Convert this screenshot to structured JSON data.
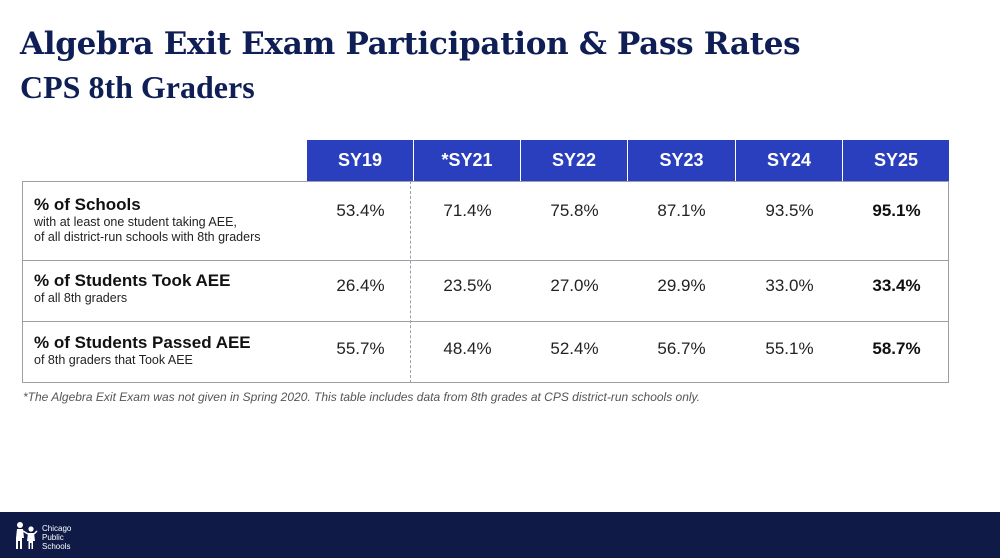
{
  "header": {
    "title": "Algebra Exit Exam Participation & Pass Rates",
    "subtitle": "CPS 8th Graders"
  },
  "table": {
    "columns": [
      "SY19",
      "*SY21",
      "SY22",
      "SY23",
      "SY24",
      "SY25"
    ],
    "rows": [
      {
        "label": "% of Schools",
        "sublabel_lines": [
          "with at least one student taking AEE,",
          "of all district-run schools with 8th graders"
        ],
        "values": [
          "53.4%",
          "71.4%",
          "75.8%",
          "87.1%",
          "93.5%",
          "95.1%"
        ]
      },
      {
        "label": "% of Students Took AEE",
        "sublabel_lines": [
          "of all 8th graders"
        ],
        "values": [
          "26.4%",
          "23.5%",
          "27.0%",
          "29.9%",
          "33.0%",
          "33.4%"
        ]
      },
      {
        "label": "% of Students Passed AEE",
        "sublabel_lines": [
          "of 8th graders that Took AEE"
        ],
        "values": [
          "55.7%",
          "48.4%",
          "52.4%",
          "56.7%",
          "55.1%",
          "58.7%"
        ]
      }
    ]
  },
  "footnote": "*The Algebra Exit Exam was not given in Spring 2020. This table includes data from 8th grades at CPS district-run schools only.",
  "footer": {
    "logo_lines": [
      "Chicago",
      "Public",
      "Schools"
    ],
    "icon": "cps-children-silhouette-icon"
  },
  "colors": {
    "header_fill": "#2a3fbd",
    "title_navy": "#0f1f56",
    "footer_navy": "#0f1b46"
  }
}
